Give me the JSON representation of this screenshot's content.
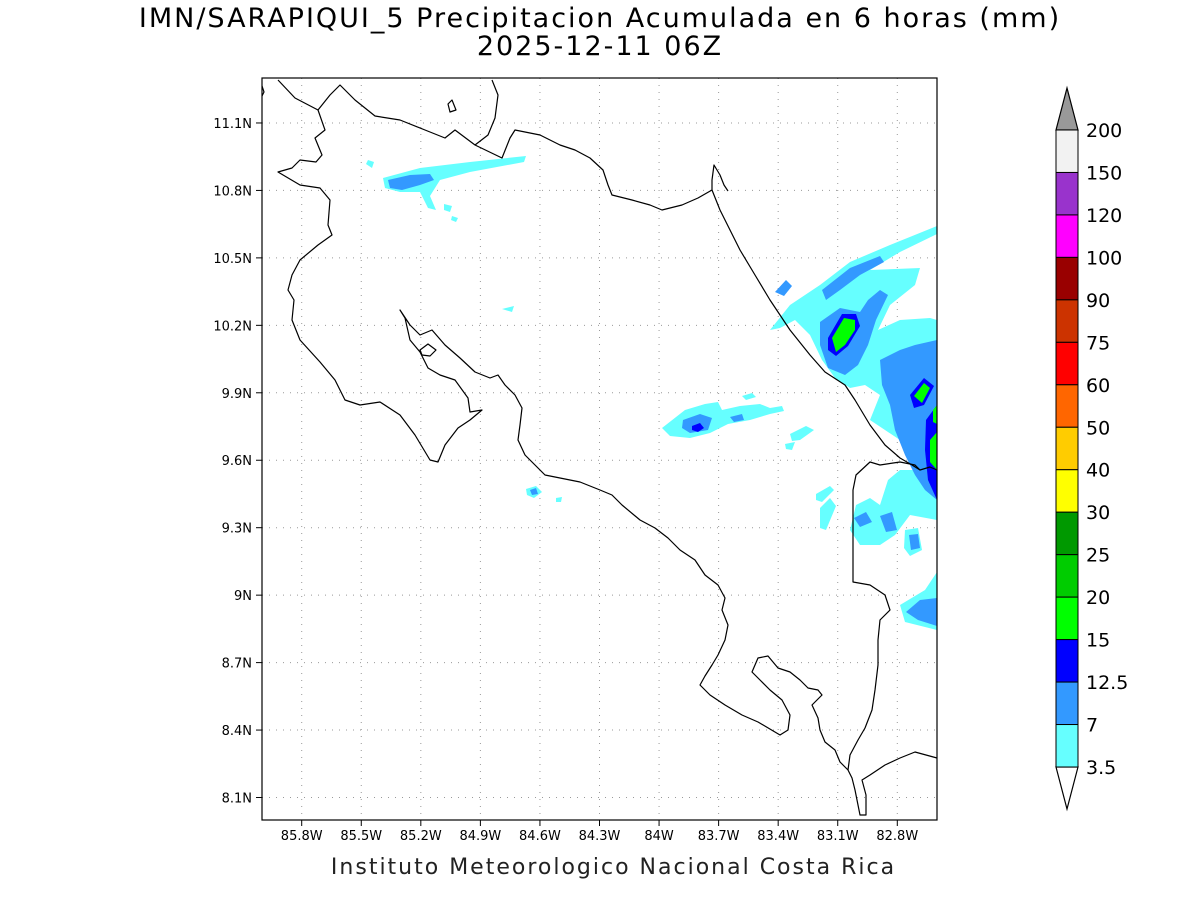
{
  "title": "IMN/SARAPIQUI_5 Precipitacion Acumulada en 6 horas (mm)",
  "subtitle": "2025-12-11 06Z",
  "footer": "Instituto Meteorologico Nacional Costa Rica",
  "map": {
    "lon_range": [
      -86.0,
      -82.6
    ],
    "lat_range": [
      8.0,
      11.3
    ],
    "lon_ticks": [
      "85.8W",
      "85.5W",
      "85.2W",
      "84.9W",
      "84.6W",
      "84.3W",
      "84W",
      "83.7W",
      "83.4W",
      "83.1W",
      "82.8W"
    ],
    "lat_ticks": [
      "11.1N",
      "10.8N",
      "10.5N",
      "10.2N",
      "9.9N",
      "9.6N",
      "9.3N",
      "9N",
      "8.7N",
      "8.4N",
      "8.1N"
    ],
    "grid": "dotted"
  },
  "colorbar": {
    "labels": [
      "3.5",
      "7",
      "12.5",
      "15",
      "20",
      "25",
      "30",
      "40",
      "50",
      "60",
      "75",
      "90",
      "100",
      "120",
      "150",
      "200"
    ],
    "colors": [
      "#66ffff",
      "#3399ff",
      "#0000ff",
      "#00ff00",
      "#00cc00",
      "#009900",
      "#ffff00",
      "#ffcc00",
      "#ff6600",
      "#ff0000",
      "#cc3300",
      "#990000",
      "#ff00ff",
      "#9933cc",
      "#f2f2f2",
      "#999999"
    ],
    "extend": "both"
  }
}
